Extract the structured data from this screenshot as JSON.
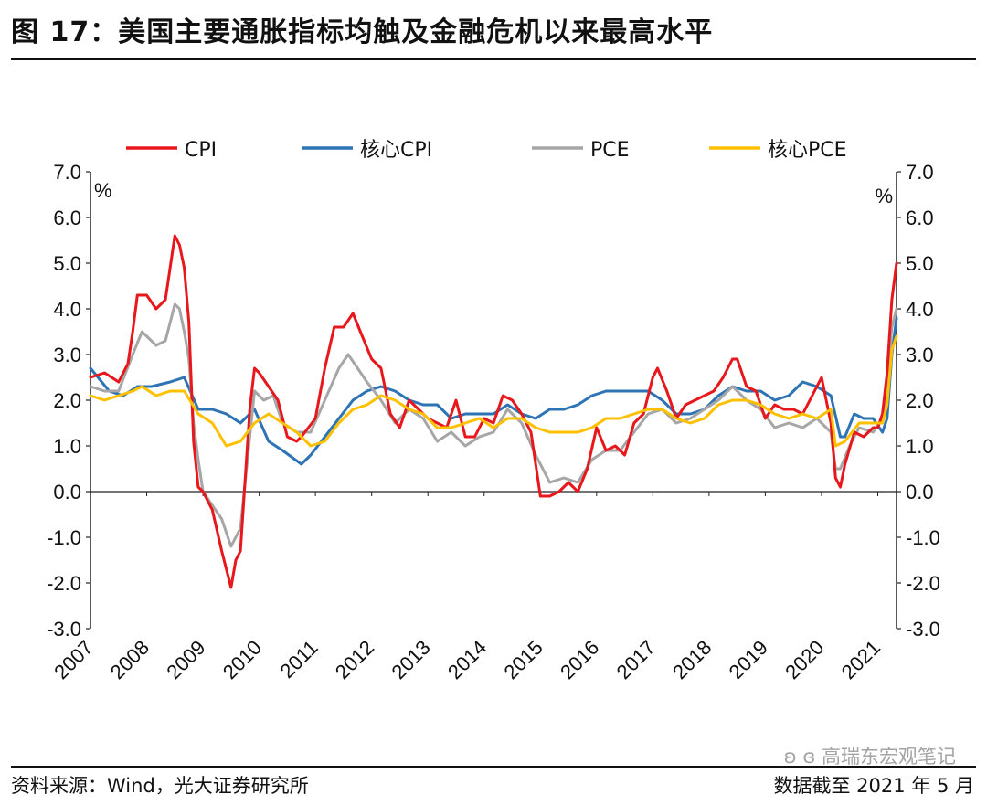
{
  "header": {
    "title": "图 17：美国主要通胀指标均触及金融危机以来最高水平"
  },
  "footer": {
    "source": "资料来源：Wind，光大证券研究所",
    "cutoff": "数据截至 2021 年 5 月",
    "watermark": "高瑞东宏观笔记"
  },
  "colors": {
    "CPI": "#e8171c",
    "coreCPI": "#2e74b5",
    "PCE": "#a6a6a6",
    "corePCE": "#ffc000"
  },
  "chart_data": {
    "type": "line",
    "ylim": [
      -3,
      7
    ],
    "yticks": [
      "7.0",
      "6.0",
      "5.0",
      "4.0",
      "3.0",
      "2.0",
      "1.0",
      "0.0",
      "-1.0",
      "-2.0",
      "-3.0"
    ],
    "yunit_left": "%",
    "yunit_right": "%",
    "xticks": [
      "2007",
      "2008",
      "2009",
      "2010",
      "2011",
      "2012",
      "2013",
      "2014",
      "2015",
      "2016",
      "2017",
      "2018",
      "2019",
      "2020",
      "2021"
    ],
    "legend_position": "top",
    "series": [
      {
        "key": "CPI",
        "name": "CPI",
        "color": "#e8171c",
        "x": [
          "2007-01",
          "2007-04",
          "2007-07",
          "2007-09",
          "2007-10",
          "2007-11",
          "2008-01",
          "2008-03",
          "2008-05",
          "2008-07",
          "2008-08",
          "2008-09",
          "2008-10",
          "2008-11",
          "2008-12",
          "2009-01",
          "2009-03",
          "2009-05",
          "2009-07",
          "2009-08",
          "2009-09",
          "2009-11",
          "2009-12",
          "2010-01",
          "2010-03",
          "2010-05",
          "2010-07",
          "2010-09",
          "2010-10",
          "2011-01",
          "2011-03",
          "2011-05",
          "2011-07",
          "2011-09",
          "2011-11",
          "2012-01",
          "2012-03",
          "2012-05",
          "2012-07",
          "2012-09",
          "2012-11",
          "2013-01",
          "2013-03",
          "2013-05",
          "2013-07",
          "2013-09",
          "2013-11",
          "2014-01",
          "2014-03",
          "2014-05",
          "2014-07",
          "2014-09",
          "2014-11",
          "2015-01",
          "2015-03",
          "2015-05",
          "2015-07",
          "2015-09",
          "2015-11",
          "2016-01",
          "2016-03",
          "2016-05",
          "2016-07",
          "2016-09",
          "2016-11",
          "2017-01",
          "2017-02",
          "2017-04",
          "2017-06",
          "2017-08",
          "2017-10",
          "2017-12",
          "2018-02",
          "2018-04",
          "2018-06",
          "2018-07",
          "2018-09",
          "2018-11",
          "2019-01",
          "2019-03",
          "2019-05",
          "2019-07",
          "2019-09",
          "2019-11",
          "2020-01",
          "2020-03",
          "2020-04",
          "2020-05",
          "2020-06",
          "2020-08",
          "2020-10",
          "2020-12",
          "2021-01",
          "2021-02",
          "2021-03",
          "2021-04",
          "2021-05"
        ],
        "y": [
          2.5,
          2.6,
          2.4,
          2.8,
          3.5,
          4.3,
          4.3,
          4.0,
          4.2,
          5.6,
          5.4,
          4.9,
          3.7,
          1.1,
          0.1,
          0.0,
          -0.4,
          -1.3,
          -2.1,
          -1.5,
          -1.3,
          1.8,
          2.7,
          2.6,
          2.3,
          2.0,
          1.2,
          1.1,
          1.2,
          1.6,
          2.7,
          3.6,
          3.6,
          3.9,
          3.4,
          2.9,
          2.7,
          1.7,
          1.4,
          2.0,
          1.8,
          1.6,
          1.5,
          1.4,
          2.0,
          1.2,
          1.2,
          1.6,
          1.5,
          2.1,
          2.0,
          1.7,
          1.3,
          -0.1,
          -0.1,
          0.0,
          0.2,
          0.0,
          0.5,
          1.4,
          0.9,
          1.0,
          0.8,
          1.5,
          1.7,
          2.5,
          2.7,
          2.2,
          1.6,
          1.9,
          2.0,
          2.1,
          2.2,
          2.5,
          2.9,
          2.9,
          2.3,
          2.2,
          1.6,
          1.9,
          1.8,
          1.8,
          1.7,
          2.1,
          2.5,
          1.5,
          0.3,
          0.1,
          0.6,
          1.3,
          1.2,
          1.4,
          1.4,
          1.7,
          2.6,
          4.2,
          5.0
        ]
      },
      {
        "key": "coreCPI",
        "name": "核心CPI",
        "color": "#2e74b5",
        "x": [
          "2007-01",
          "2007-05",
          "2007-08",
          "2007-11",
          "2008-02",
          "2008-06",
          "2008-09",
          "2008-12",
          "2009-03",
          "2009-06",
          "2009-09",
          "2009-12",
          "2010-03",
          "2010-06",
          "2010-10",
          "2010-12",
          "2011-03",
          "2011-06",
          "2011-09",
          "2011-12",
          "2012-03",
          "2012-06",
          "2012-09",
          "2012-12",
          "2013-03",
          "2013-06",
          "2013-09",
          "2013-12",
          "2014-03",
          "2014-06",
          "2014-09",
          "2014-12",
          "2015-03",
          "2015-06",
          "2015-09",
          "2015-12",
          "2016-03",
          "2016-06",
          "2016-09",
          "2016-12",
          "2017-03",
          "2017-06",
          "2017-09",
          "2017-12",
          "2018-03",
          "2018-06",
          "2018-09",
          "2018-12",
          "2019-03",
          "2019-06",
          "2019-09",
          "2019-12",
          "2020-03",
          "2020-05",
          "2020-06",
          "2020-08",
          "2020-10",
          "2020-12",
          "2021-02",
          "2021-03",
          "2021-04",
          "2021-05"
        ],
        "y": [
          2.7,
          2.2,
          2.1,
          2.3,
          2.3,
          2.4,
          2.5,
          1.8,
          1.8,
          1.7,
          1.5,
          1.8,
          1.1,
          0.9,
          0.6,
          0.8,
          1.2,
          1.6,
          2.0,
          2.2,
          2.3,
          2.2,
          2.0,
          1.9,
          1.9,
          1.6,
          1.7,
          1.7,
          1.7,
          1.9,
          1.7,
          1.6,
          1.8,
          1.8,
          1.9,
          2.1,
          2.2,
          2.2,
          2.2,
          2.2,
          2.0,
          1.7,
          1.7,
          1.8,
          2.1,
          2.3,
          2.2,
          2.2,
          2.0,
          2.1,
          2.4,
          2.3,
          2.1,
          1.2,
          1.2,
          1.7,
          1.6,
          1.6,
          1.3,
          1.6,
          3.0,
          3.8
        ]
      },
      {
        "key": "PCE",
        "name": "PCE",
        "color": "#a6a6a6",
        "x": [
          "2007-01",
          "2007-04",
          "2007-07",
          "2007-10",
          "2007-12",
          "2008-03",
          "2008-05",
          "2008-07",
          "2008-08",
          "2008-09",
          "2008-10",
          "2008-11",
          "2008-12",
          "2009-01",
          "2009-03",
          "2009-05",
          "2009-07",
          "2009-09",
          "2009-10",
          "2009-12",
          "2010-02",
          "2010-04",
          "2010-06",
          "2010-09",
          "2010-12",
          "2011-03",
          "2011-06",
          "2011-08",
          "2011-10",
          "2011-12",
          "2012-03",
          "2012-06",
          "2012-09",
          "2012-12",
          "2013-03",
          "2013-06",
          "2013-09",
          "2013-12",
          "2014-03",
          "2014-06",
          "2014-09",
          "2014-12",
          "2015-03",
          "2015-06",
          "2015-09",
          "2015-12",
          "2016-03",
          "2016-06",
          "2016-09",
          "2016-12",
          "2017-03",
          "2017-06",
          "2017-09",
          "2017-12",
          "2018-03",
          "2018-06",
          "2018-09",
          "2018-12",
          "2019-03",
          "2019-06",
          "2019-09",
          "2019-12",
          "2020-03",
          "2020-04",
          "2020-05",
          "2020-07",
          "2020-09",
          "2020-12",
          "2021-02",
          "2021-03",
          "2021-04",
          "2021-05"
        ],
        "y": [
          2.3,
          2.2,
          2.2,
          3.0,
          3.5,
          3.2,
          3.3,
          4.1,
          4.0,
          3.5,
          2.9,
          1.5,
          0.7,
          0.0,
          -0.3,
          -0.6,
          -1.2,
          -0.8,
          0.2,
          2.2,
          2.0,
          2.1,
          1.5,
          1.3,
          1.3,
          2.0,
          2.7,
          3.0,
          2.7,
          2.4,
          2.0,
          1.5,
          1.8,
          1.6,
          1.1,
          1.3,
          1.0,
          1.2,
          1.3,
          1.8,
          1.5,
          0.8,
          0.2,
          0.3,
          0.2,
          0.7,
          0.9,
          0.9,
          1.3,
          1.7,
          1.8,
          1.5,
          1.6,
          1.8,
          2.0,
          2.3,
          2.0,
          1.8,
          1.4,
          1.5,
          1.4,
          1.6,
          1.3,
          0.5,
          0.5,
          1.0,
          1.4,
          1.3,
          1.6,
          2.4,
          3.6,
          4.0
        ]
      },
      {
        "key": "corePCE",
        "name": "核心PCE",
        "color": "#ffc000",
        "x": [
          "2007-01",
          "2007-04",
          "2007-07",
          "2007-10",
          "2007-12",
          "2008-03",
          "2008-06",
          "2008-09",
          "2008-12",
          "2009-03",
          "2009-06",
          "2009-09",
          "2009-12",
          "2010-03",
          "2010-06",
          "2010-09",
          "2010-12",
          "2011-03",
          "2011-06",
          "2011-09",
          "2011-12",
          "2012-03",
          "2012-06",
          "2012-09",
          "2012-12",
          "2013-03",
          "2013-06",
          "2013-09",
          "2013-12",
          "2014-03",
          "2014-06",
          "2014-09",
          "2014-12",
          "2015-03",
          "2015-06",
          "2015-09",
          "2015-12",
          "2016-03",
          "2016-06",
          "2016-09",
          "2016-12",
          "2017-03",
          "2017-06",
          "2017-09",
          "2017-12",
          "2018-03",
          "2018-06",
          "2018-09",
          "2018-12",
          "2019-03",
          "2019-06",
          "2019-09",
          "2019-12",
          "2020-03",
          "2020-04",
          "2020-06",
          "2020-09",
          "2020-12",
          "2021-02",
          "2021-03",
          "2021-04",
          "2021-05"
        ],
        "y": [
          2.1,
          2.0,
          2.1,
          2.2,
          2.3,
          2.1,
          2.2,
          2.2,
          1.7,
          1.5,
          1.0,
          1.1,
          1.5,
          1.7,
          1.5,
          1.3,
          1.0,
          1.1,
          1.5,
          1.8,
          1.9,
          2.1,
          2.0,
          1.8,
          1.7,
          1.4,
          1.4,
          1.5,
          1.6,
          1.4,
          1.6,
          1.6,
          1.4,
          1.3,
          1.3,
          1.3,
          1.4,
          1.6,
          1.6,
          1.7,
          1.8,
          1.8,
          1.6,
          1.5,
          1.6,
          1.9,
          2.0,
          2.0,
          1.9,
          1.7,
          1.6,
          1.7,
          1.6,
          1.8,
          1.0,
          1.1,
          1.5,
          1.5,
          1.5,
          1.9,
          3.1,
          3.4
        ]
      }
    ]
  }
}
